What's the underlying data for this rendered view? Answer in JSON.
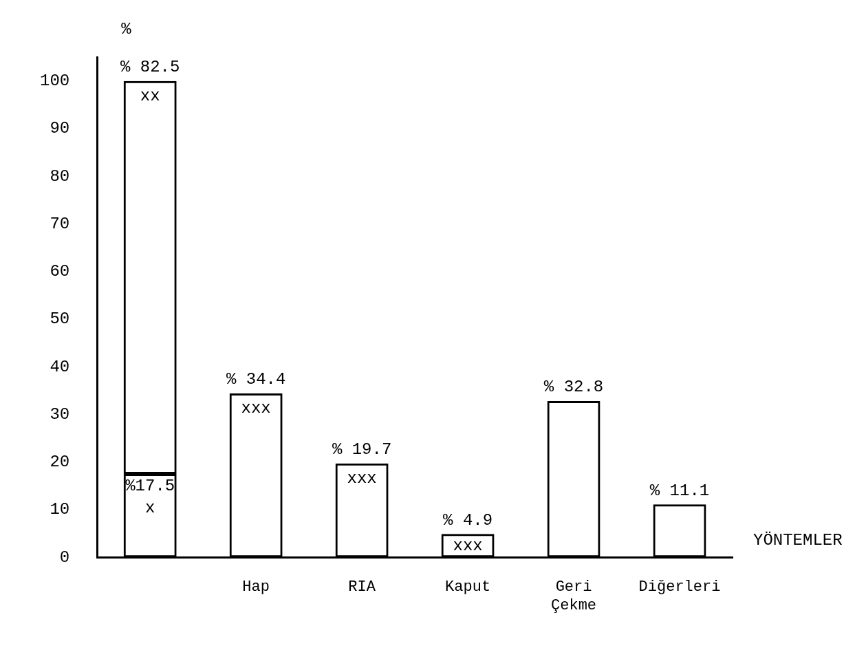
{
  "chart_data": {
    "type": "bar",
    "stacked": true,
    "xlabel": "YÖNTEMLER",
    "ylabel": "%",
    "categories": [
      null,
      "Hap",
      "RIA",
      "Kaput",
      "Geri Çekme",
      "Diğerleri"
    ],
    "series": [
      {
        "color": "#000000",
        "values": [
          17.5,
          34.4,
          19.7,
          4.9,
          32.8,
          11.1
        ],
        "value_labels": [
          "%17.5",
          "% 34.4",
          "% 19.7",
          "% 4.9",
          "% 32.8",
          "% 11.1"
        ]
      },
      {
        "color": "#000000",
        "values": [
          82.5,
          null,
          null,
          null,
          null,
          null
        ],
        "value_labels": [
          "% 82.5",
          null,
          null,
          null,
          null,
          null
        ]
      }
    ],
    "ylim": [
      0,
      105
    ],
    "yticks": [
      0,
      10,
      20,
      30,
      40,
      50,
      60,
      70,
      80,
      90,
      100
    ],
    "annotations": [
      "x",
      "xx",
      "xxx",
      "xxx",
      "xxx"
    ],
    "grid": false,
    "legend": false
  }
}
